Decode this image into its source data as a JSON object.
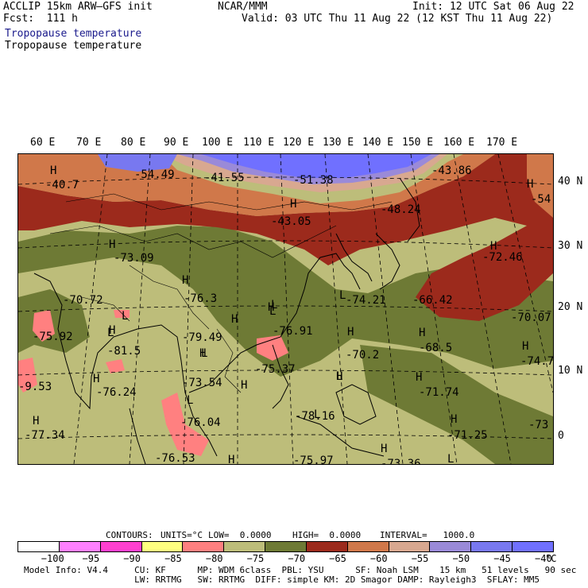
{
  "header": {
    "left1": "ACCLIP 15km ARW–GFS init",
    "left2": "Fcst:  111 h",
    "title_blue": "Tropopause temperature",
    "title_black": "Tropopause temperature",
    "center": "NCAR/MMM",
    "init": "Init: 12 UTC Sat 06 Aug 22",
    "valid": "Valid: 03 UTC Thu 11 Aug 22 (12 KST Thu 11 Aug 22)"
  },
  "lon_labels": [
    "60 E",
    "70 E",
    "80 E",
    "90 E",
    "100 E",
    "110 E",
    "120 E",
    "130 E",
    "140 E",
    "150 E",
    "160 E",
    "170 E"
  ],
  "lat_labels": [
    "40 N",
    "30 N",
    "20 N",
    "10 N",
    "0"
  ],
  "contour_info": {
    "contours": "CONTOURS:",
    "units": "UNITS=°C",
    "low": "LOW=  0.0000",
    "high": "HIGH=  0.0000",
    "interval": "INTERVAL=   1000.0"
  },
  "colorbar": {
    "colors": [
      "#ffffff",
      "#ff80ff",
      "#ff40d0",
      "#ffff80",
      "#ff8080",
      "#bdbd7a",
      "#6e7a35",
      "#9c2a1c",
      "#d0784a",
      "#d8a890",
      "#9a8ad8",
      "#7878f0",
      "#7070ff"
    ],
    "ticks": [
      "−100",
      "−95",
      "−90",
      "−85",
      "−80",
      "−75",
      "−70",
      "−65",
      "−60",
      "−55",
      "−50",
      "−45",
      "−40",
      "°C"
    ]
  },
  "footer": {
    "line1": "Model Info: V4.4     CU: KF      MP: WDM 6class  PBL: YSU      SF: Noah LSM    15 km   51 levels   90 sec",
    "line2": "                     LW: RRTMG   SW: RRTMG  DIFF: simple KM: 2D Smagor DAMP: Rayleigh3  SFLAY: MM5"
  },
  "map_labels": [
    {
      "text": "-40.7"
    },
    {
      "text": "-54.49"
    },
    {
      "text": "-41.55"
    },
    {
      "text": "-51.38"
    },
    {
      "text": "-43.86"
    },
    {
      "text": "-54"
    },
    {
      "text": "-43.05"
    },
    {
      "text": "-48.24"
    },
    {
      "text": "-73.09"
    },
    {
      "text": "-72.46"
    },
    {
      "text": "-70.72"
    },
    {
      "text": "-76.3"
    },
    {
      "text": "-74.21"
    },
    {
      "text": "-66.42"
    },
    {
      "text": "-70.07"
    },
    {
      "text": "-75.92"
    },
    {
      "text": "-79.49"
    },
    {
      "text": "-76.91"
    },
    {
      "text": "-81.5"
    },
    {
      "text": "-70.2"
    },
    {
      "text": "-68.5"
    },
    {
      "text": "-74.7"
    },
    {
      "text": "-75.37"
    },
    {
      "text": "-9.53"
    },
    {
      "text": "-73.54"
    },
    {
      "text": "-76.24"
    },
    {
      "text": "-71.74"
    },
    {
      "text": "-78.16"
    },
    {
      "text": "-76.04"
    },
    {
      "text": "-77.34"
    },
    {
      "text": "-71.25"
    },
    {
      "text": "-73"
    },
    {
      "text": "-76.53"
    },
    {
      "text": "-75.97"
    },
    {
      "text": "-73.36"
    }
  ],
  "hl_markers": [
    "H",
    "H",
    "H",
    "H",
    "H",
    "H",
    "H",
    "H",
    "H",
    "H",
    "H",
    "H",
    "H",
    "H",
    "H",
    "H",
    "H",
    "H",
    "H",
    "H",
    "H",
    "L",
    "L",
    "L",
    "L",
    "L",
    "L",
    "L",
    "L",
    "L",
    "L"
  ]
}
